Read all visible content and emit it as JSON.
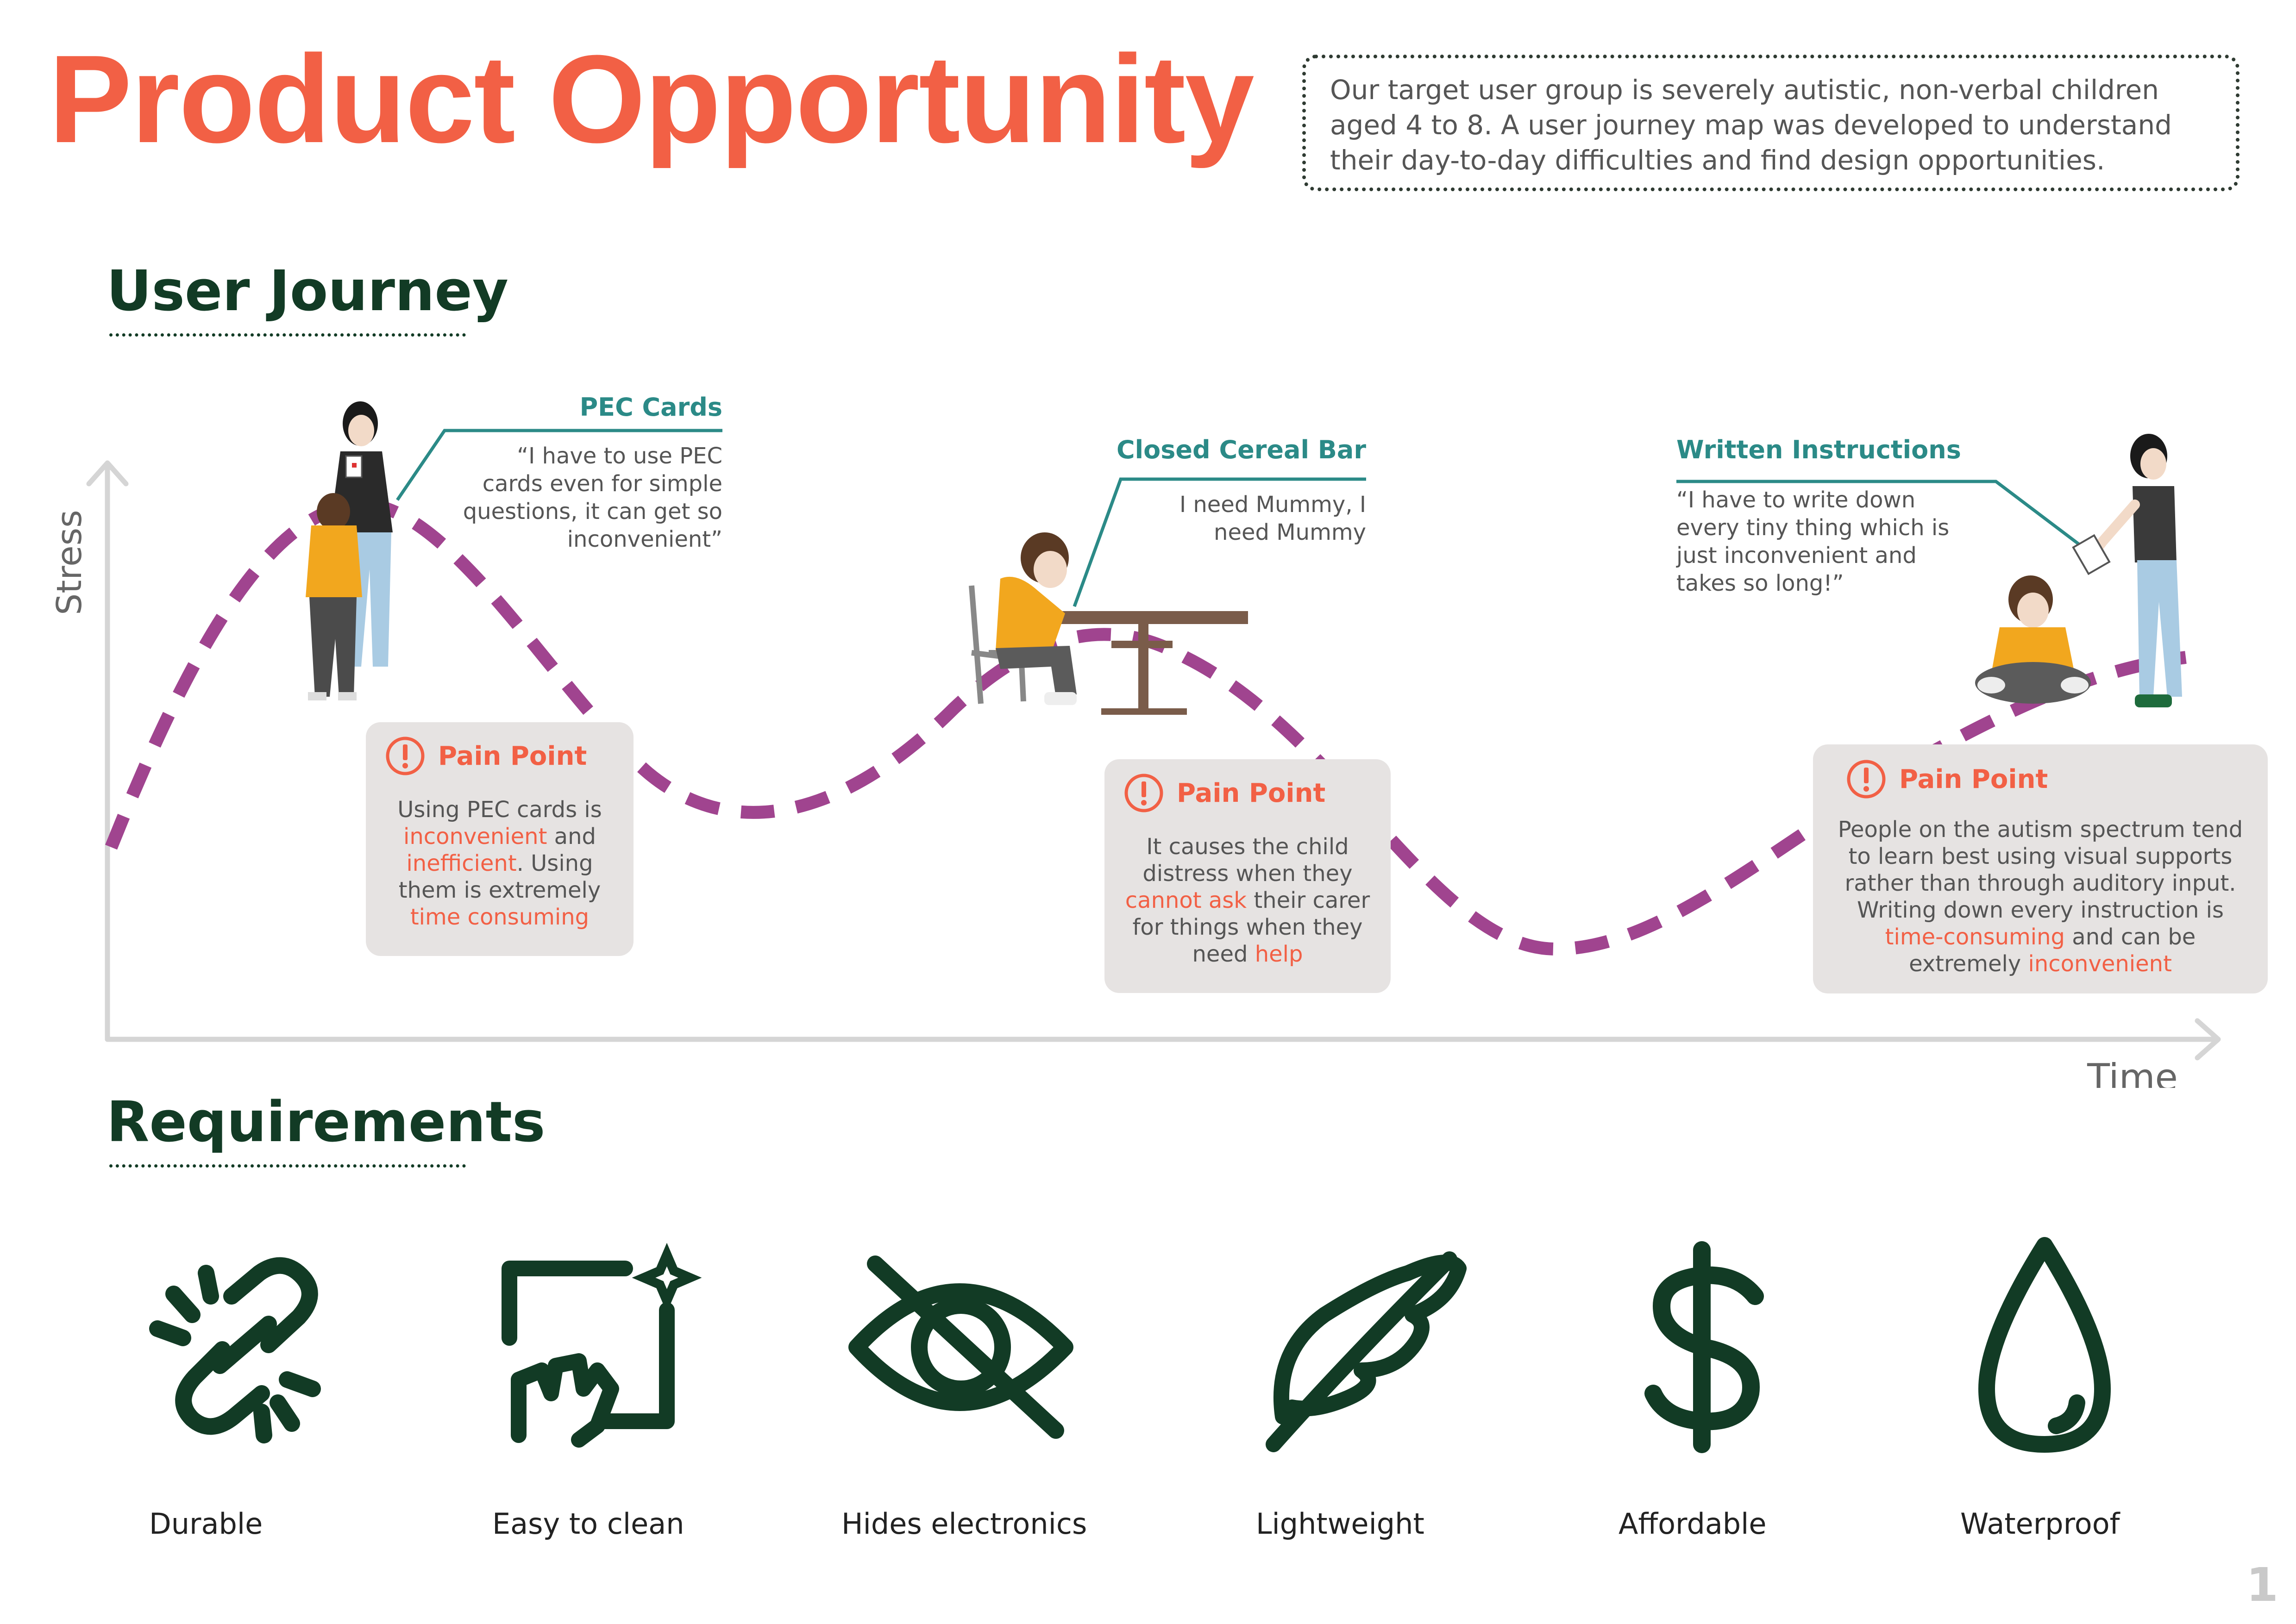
{
  "title": "Product Opportunity",
  "intro": "Our target user group is severely autistic, non-verbal children aged 4 to 8.  A user journey map was developed to understand their day-to-day difficulties and find design opportunities.",
  "sections": {
    "journey": "User Journey",
    "requirements": "Requirements"
  },
  "chart": {
    "y_axis_label": "Stress",
    "x_axis_label": "Time"
  },
  "moments": [
    {
      "title": "PEC Cards",
      "quote": "“I have to use PEC cards even for simple questions, it can get so inconvenient”"
    },
    {
      "title": "Closed Cereal Bar",
      "quote": "I need Mummy, I need Mummy"
    },
    {
      "title": "Written Instructions",
      "quote": "“I have to write down every tiny thing which is just inconvenient and takes so long!”"
    }
  ],
  "pain_points": [
    {
      "title": "Pain Point",
      "parts": [
        {
          "t": "Using PEC cards is "
        },
        {
          "t": "inconvenient",
          "hl": true
        },
        {
          "t": " and "
        },
        {
          "t": "inefficient",
          "hl": true
        },
        {
          "t": ". Using them is extremely "
        },
        {
          "t": "time consuming",
          "hl": true
        }
      ]
    },
    {
      "title": "Pain Point",
      "parts": [
        {
          "t": "It causes the child distress when they "
        },
        {
          "t": "cannot ask",
          "hl": true
        },
        {
          "t": " their carer for things when they need "
        },
        {
          "t": "help",
          "hl": true
        }
      ]
    },
    {
      "title": "Pain Point",
      "parts": [
        {
          "t": "People on the autism spectrum tend to learn best using visual supports rather than through auditory input. Writing down every instruction is "
        },
        {
          "t": "time-consuming",
          "hl": true
        },
        {
          "t": " and can be extremely "
        },
        {
          "t": "inconvenient",
          "hl": true
        }
      ]
    }
  ],
  "requirements": [
    {
      "label": "Durable",
      "icon": "broken-link-icon"
    },
    {
      "label": "Easy to clean",
      "icon": "wipe-surface-icon"
    },
    {
      "label": "Hides electronics",
      "icon": "eye-slash-icon"
    },
    {
      "label": "Lightweight",
      "icon": "feather-icon"
    },
    {
      "label": "Affordable",
      "icon": "dollar-icon"
    },
    {
      "label": "Waterproof",
      "icon": "water-drop-icon"
    }
  ],
  "page_number": "1",
  "colors": {
    "title": "#f26045",
    "heading": "#123b25",
    "accent_teal": "#2b8a87",
    "curve": "#a0448f",
    "pain_bg": "#e6e3e2"
  }
}
